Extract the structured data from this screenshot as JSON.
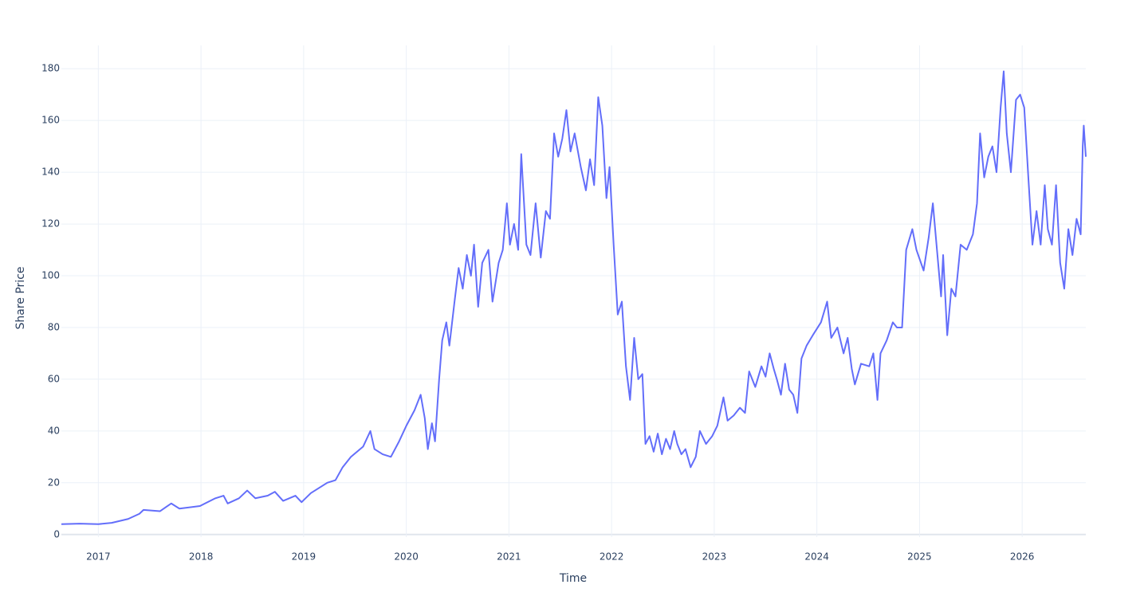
{
  "chart_data": {
    "type": "line",
    "x_label": "Time",
    "y_label": "Share Price",
    "xlim": [
      2016.64,
      2026.62
    ],
    "xticks": [
      {
        "value": 2017,
        "label": "2017"
      },
      {
        "value": 2018,
        "label": "2018"
      },
      {
        "value": 2019,
        "label": "2019"
      },
      {
        "value": 2020,
        "label": "2020"
      },
      {
        "value": 2021,
        "label": "2021"
      },
      {
        "value": 2022,
        "label": "2022"
      },
      {
        "value": 2023,
        "label": "2023"
      },
      {
        "value": 2024,
        "label": "2024"
      },
      {
        "value": 2025,
        "label": "2025"
      },
      {
        "value": 2026,
        "label": "2026"
      }
    ],
    "ylim": [
      -1,
      189
    ],
    "yticks": [
      0,
      20,
      40,
      60,
      80,
      100,
      120,
      140,
      160,
      180
    ],
    "grid": true,
    "x": [
      2016.64,
      2016.82,
      2017.0,
      2017.13,
      2017.29,
      2017.4,
      2017.44,
      2017.6,
      2017.71,
      2017.79,
      2017.99,
      2018.14,
      2018.22,
      2018.26,
      2018.37,
      2018.45,
      2018.53,
      2018.65,
      2018.72,
      2018.8,
      2018.92,
      2018.98,
      2019.07,
      2019.23,
      2019.31,
      2019.38,
      2019.46,
      2019.58,
      2019.65,
      2019.69,
      2019.77,
      2019.85,
      2019.93,
      2020.0,
      2020.08,
      2020.14,
      2020.18,
      2020.21,
      2020.25,
      2020.28,
      2020.32,
      2020.35,
      2020.39,
      2020.42,
      2020.47,
      2020.51,
      2020.55,
      2020.59,
      2020.63,
      2020.66,
      2020.7,
      2020.74,
      2020.8,
      2020.84,
      2020.9,
      2020.94,
      2020.98,
      2021.01,
      2021.05,
      2021.09,
      2021.12,
      2021.17,
      2021.21,
      2021.26,
      2021.31,
      2021.36,
      2021.4,
      2021.44,
      2021.48,
      2021.52,
      2021.56,
      2021.6,
      2021.64,
      2021.7,
      2021.75,
      2021.79,
      2021.83,
      2021.87,
      2021.91,
      2021.95,
      2021.98,
      2022.02,
      2022.06,
      2022.1,
      2022.14,
      2022.18,
      2022.22,
      2022.26,
      2022.3,
      2022.33,
      2022.37,
      2022.41,
      2022.45,
      2022.49,
      2022.53,
      2022.57,
      2022.61,
      2022.64,
      2022.68,
      2022.72,
      2022.77,
      2022.82,
      2022.86,
      2022.92,
      2022.98,
      2023.03,
      2023.09,
      2023.13,
      2023.19,
      2023.25,
      2023.3,
      2023.34,
      2023.4,
      2023.46,
      2023.5,
      2023.54,
      2023.58,
      2023.61,
      2023.65,
      2023.69,
      2023.73,
      2023.77,
      2023.81,
      2023.85,
      2023.9,
      2023.96,
      2024.04,
      2024.1,
      2024.14,
      2024.2,
      2024.26,
      2024.3,
      2024.34,
      2024.37,
      2024.43,
      2024.51,
      2024.55,
      2024.59,
      2024.62,
      2024.68,
      2024.74,
      2024.78,
      2024.83,
      2024.87,
      2024.93,
      2024.97,
      2025.04,
      2025.09,
      2025.13,
      2025.17,
      2025.21,
      2025.23,
      2025.27,
      2025.31,
      2025.35,
      2025.4,
      2025.46,
      2025.52,
      2025.56,
      2025.59,
      2025.63,
      2025.67,
      2025.71,
      2025.75,
      2025.79,
      2025.82,
      2025.85,
      2025.89,
      2025.94,
      2025.98,
      2026.02,
      2026.06,
      2026.1,
      2026.14,
      2026.18,
      2026.22,
      2026.25,
      2026.29,
      2026.33,
      2026.37,
      2026.41,
      2026.45,
      2026.49,
      2026.53,
      2026.57,
      2026.59,
      2026.6,
      2026.62
    ],
    "series": [
      {
        "name": "Share Price",
        "color": "#636efa",
        "values": [
          4,
          4.2,
          4,
          4.5,
          6,
          8,
          9.5,
          9,
          12,
          10,
          11,
          14,
          15,
          12,
          14,
          17,
          14,
          15,
          16.5,
          13,
          15,
          12.5,
          16,
          20,
          21,
          26,
          30,
          34,
          40,
          33,
          31,
          30,
          36,
          42,
          48,
          54,
          45,
          33,
          43,
          36,
          60,
          75,
          82,
          73,
          90,
          103,
          95,
          108,
          100,
          112,
          88,
          105,
          110,
          90,
          105,
          110,
          128,
          112,
          120,
          110,
          147,
          112,
          108,
          128,
          107,
          125,
          122,
          155,
          146,
          153,
          164,
          148,
          155,
          142,
          133,
          145,
          135,
          169,
          158,
          130,
          142,
          112,
          85,
          90,
          65,
          52,
          76,
          60,
          62,
          35,
          38,
          32,
          39,
          31,
          37,
          33,
          40,
          35,
          31,
          33,
          26,
          30,
          40,
          35,
          38,
          42,
          53,
          44,
          46,
          49,
          47,
          63,
          57,
          65,
          61,
          70,
          64,
          60,
          54,
          66,
          56,
          54,
          47,
          68,
          73,
          77,
          82,
          90,
          76,
          80,
          70,
          76,
          64,
          58,
          66,
          65,
          70,
          52,
          70,
          75,
          82,
          80,
          80,
          110,
          118,
          110,
          102,
          115,
          128,
          110,
          92,
          108,
          77,
          95,
          92,
          112,
          110,
          116,
          128,
          155,
          138,
          146,
          150,
          140,
          165,
          179,
          155,
          140,
          168,
          170,
          165,
          138,
          112,
          125,
          112,
          135,
          118,
          112,
          135,
          105,
          95,
          118,
          108,
          122,
          116,
          150,
          158,
          146
        ]
      }
    ]
  }
}
